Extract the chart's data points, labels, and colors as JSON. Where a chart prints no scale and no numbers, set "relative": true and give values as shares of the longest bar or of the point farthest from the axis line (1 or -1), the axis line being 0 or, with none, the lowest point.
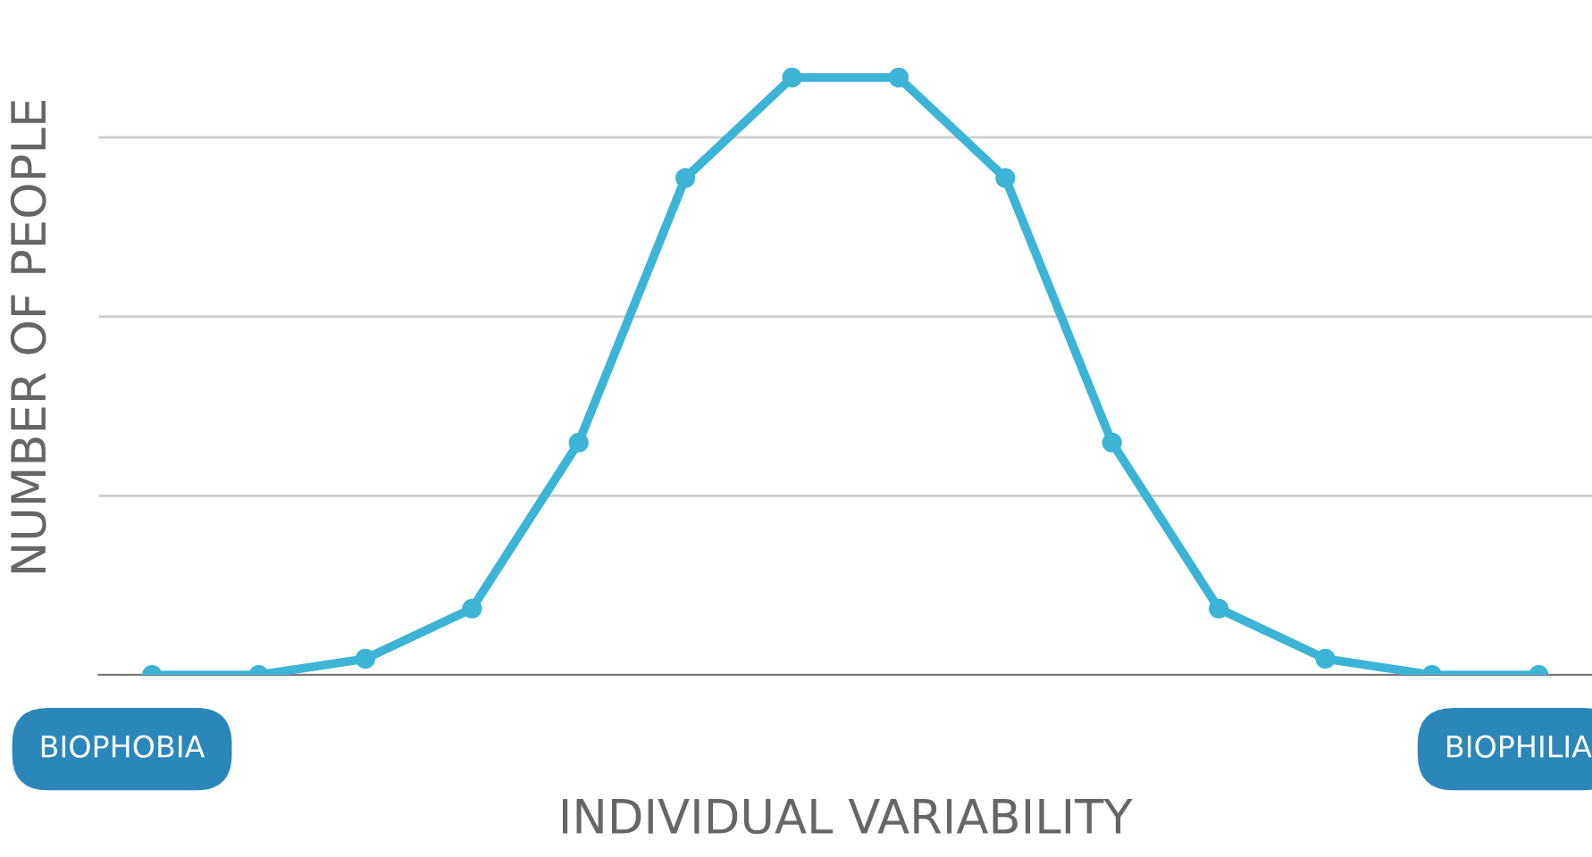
{
  "chart_data": {
    "type": "line",
    "relative": true,
    "xlabel": "INDIVIDUAL VARIABILITY",
    "ylabel": "NUMBER OF PEOPLE",
    "categories": [
      null,
      null,
      null,
      null,
      null,
      null,
      null,
      null,
      null,
      null,
      null,
      null,
      null,
      null
    ],
    "series": [
      {
        "color": "#3cb4d6",
        "values": [
          0,
          0,
          0.027,
          0.111,
          0.389,
          0.832,
          1,
          1,
          0.832,
          0.389,
          0.111,
          0.027,
          0,
          0
        ]
      }
    ],
    "annotations": [
      "BIOPHOBIA",
      "BIOPHILIA"
    ],
    "marker": "circle",
    "line_style": "solid",
    "grid": "y"
  }
}
